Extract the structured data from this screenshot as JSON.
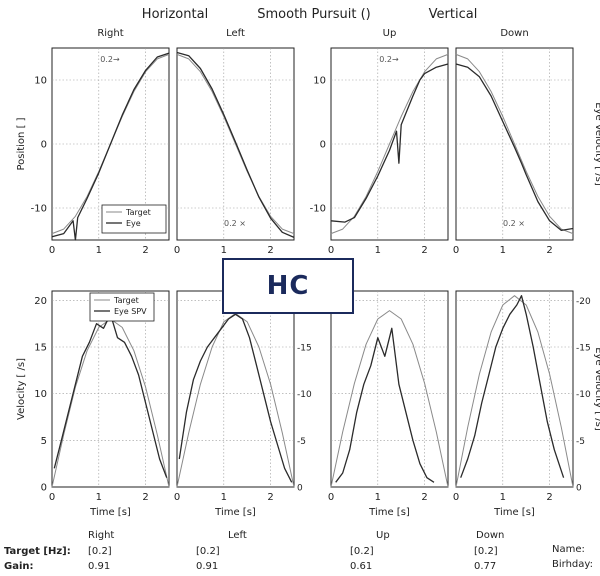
{
  "header": {
    "horizontal": "Horizontal",
    "smooth_pursuit": "Smooth Pursuit ()",
    "vertical": "Vertical"
  },
  "overlay_label": "HC",
  "colors": {
    "target": "#8a8a8a",
    "eye": "#2b2b2b",
    "grid": "#9a9a9a",
    "axis": "#222222",
    "overlay_border": "#1b2a5c",
    "overlay_text": "#1b2a5c"
  },
  "chart_data": [
    {
      "type": "line",
      "row": "position",
      "title": "Right",
      "ylabel": "Position [ ]",
      "xlabel": "",
      "xlim": [
        0,
        2.5
      ],
      "ylim": [
        -15,
        15
      ],
      "xticks": [
        "0",
        "1",
        "2"
      ],
      "yticks": [
        "10",
        "0",
        "-10"
      ],
      "grid": true,
      "annotation": "0.2→",
      "legend": {
        "entries": [
          "Target",
          "Eye"
        ],
        "position": "bottom-right"
      },
      "series": [
        {
          "name": "Target",
          "x": [
            0,
            0.25,
            0.5,
            0.75,
            1.0,
            1.25,
            1.5,
            1.75,
            2.0,
            2.25,
            2.5
          ],
          "y": [
            -14,
            -13.3,
            -11.3,
            -8.2,
            -4.3,
            0,
            4.3,
            8.2,
            11.3,
            13.3,
            14
          ]
        },
        {
          "name": "Eye",
          "x": [
            0,
            0.25,
            0.45,
            0.5,
            0.55,
            0.75,
            1.0,
            1.25,
            1.5,
            1.75,
            2.0,
            2.25,
            2.5
          ],
          "y": [
            -14.5,
            -14,
            -12,
            -15,
            -11.5,
            -8.5,
            -4.5,
            0,
            4.5,
            8.5,
            11.5,
            13.6,
            14.2
          ]
        }
      ]
    },
    {
      "type": "line",
      "row": "position",
      "title": "Left",
      "xlabel": "",
      "xlim": [
        0,
        2.5
      ],
      "ylim": [
        -15,
        15
      ],
      "xticks": [
        "0",
        "1",
        "2"
      ],
      "yticks": [],
      "grid": true,
      "annotation": "0.2 ×",
      "series": [
        {
          "name": "Target",
          "x": [
            0,
            0.25,
            0.5,
            0.75,
            1.0,
            1.25,
            1.5,
            1.75,
            2.0,
            2.25,
            2.5
          ],
          "y": [
            14,
            13.3,
            11.3,
            8.2,
            4.3,
            0,
            -4.3,
            -8.2,
            -11.3,
            -13.3,
            -14
          ]
        },
        {
          "name": "Eye",
          "x": [
            0,
            0.25,
            0.5,
            0.75,
            1.0,
            1.25,
            1.5,
            1.75,
            2.0,
            2.25,
            2.5
          ],
          "y": [
            14.3,
            13.8,
            11.8,
            8.6,
            4.6,
            0.3,
            -4.1,
            -8.3,
            -11.6,
            -13.8,
            -14.6
          ]
        }
      ]
    },
    {
      "type": "line",
      "row": "position",
      "title": "Up",
      "xlabel": "",
      "xlim": [
        0,
        2.5
      ],
      "ylim": [
        -15,
        15
      ],
      "xticks": [
        "0",
        "1",
        "2"
      ],
      "yticks": [
        "10",
        "0",
        "-10"
      ],
      "grid": true,
      "annotation": "0.2→",
      "series": [
        {
          "name": "Target",
          "x": [
            0,
            0.25,
            0.5,
            0.75,
            1.0,
            1.25,
            1.5,
            1.75,
            2.0,
            2.25,
            2.5
          ],
          "y": [
            -14,
            -13.3,
            -11.3,
            -8.2,
            -4.3,
            0,
            4.3,
            8.2,
            11.3,
            13.3,
            14
          ]
        },
        {
          "name": "Eye",
          "x": [
            0,
            0.3,
            0.5,
            0.75,
            1.0,
            1.25,
            1.4,
            1.45,
            1.5,
            1.75,
            1.9,
            2.0,
            2.25,
            2.5
          ],
          "y": [
            -12,
            -12.2,
            -11.5,
            -8.5,
            -5,
            -1,
            2,
            -3,
            3,
            7.5,
            10,
            11,
            12,
            12.5
          ]
        }
      ]
    },
    {
      "type": "line",
      "row": "position",
      "title": "Down",
      "xlabel": "",
      "xlim": [
        0,
        2.5
      ],
      "ylim": [
        -15,
        15
      ],
      "xticks": [
        "0",
        "1",
        "2"
      ],
      "yticks": [],
      "grid": true,
      "annotation": "0.2 ×",
      "right_axis_label": "Eye Velocity [ /s]",
      "series": [
        {
          "name": "Target",
          "x": [
            0,
            0.25,
            0.5,
            0.75,
            1.0,
            1.25,
            1.5,
            1.75,
            2.0,
            2.25,
            2.5
          ],
          "y": [
            14,
            13.3,
            11.3,
            8.2,
            4.3,
            0,
            -4.3,
            -8.2,
            -11.3,
            -13.3,
            -14
          ]
        },
        {
          "name": "Eye",
          "x": [
            0,
            0.25,
            0.5,
            0.75,
            1.0,
            1.25,
            1.4,
            1.5,
            1.75,
            2.0,
            2.25,
            2.5
          ],
          "y": [
            12.5,
            12,
            10.5,
            7.5,
            3.5,
            -0.5,
            -3,
            -4.8,
            -9,
            -12,
            -13.5,
            -13.2
          ]
        }
      ]
    },
    {
      "type": "line",
      "row": "velocity",
      "title": "",
      "ylabel": "Velocity [ /s]",
      "xlabel": "Time [s]",
      "xlim": [
        0,
        2.5
      ],
      "ylim": [
        0,
        21
      ],
      "xticks": [
        "0",
        "1",
        "2"
      ],
      "yticks": [
        "20",
        "15",
        "10",
        "5",
        "0"
      ],
      "grid": true,
      "legend": {
        "entries": [
          "Target",
          "Eye SPV"
        ],
        "position": "top"
      },
      "series": [
        {
          "name": "Target",
          "x": [
            0,
            0.25,
            0.5,
            0.75,
            1.0,
            1.25,
            1.5,
            1.75,
            2.0,
            2.25,
            2.5
          ],
          "y": [
            0,
            5.6,
            10.7,
            14.6,
            17.1,
            18,
            17.1,
            14.6,
            10.7,
            5.6,
            0
          ]
        },
        {
          "name": "Eye SPV",
          "x": [
            0.05,
            0.2,
            0.35,
            0.5,
            0.65,
            0.8,
            0.95,
            1.1,
            1.25,
            1.4,
            1.55,
            1.7,
            1.85,
            2.0,
            2.15,
            2.3,
            2.45
          ],
          "y": [
            2,
            5,
            8,
            11,
            14,
            15.5,
            17.5,
            17,
            18.5,
            16,
            15.5,
            14,
            12,
            9,
            6,
            3,
            1
          ]
        }
      ]
    },
    {
      "type": "line",
      "row": "velocity",
      "title": "",
      "xlabel": "Time [s]",
      "xlim": [
        0,
        2.5
      ],
      "ylim": [
        0,
        21
      ],
      "xticks": [
        "0",
        "1",
        "2"
      ],
      "yticks": [],
      "right_yticks": [
        "-15",
        "-10",
        "-5",
        "0"
      ],
      "grid": true,
      "series": [
        {
          "name": "Target",
          "x": [
            0,
            0.25,
            0.5,
            0.75,
            1.0,
            1.25,
            1.5,
            1.75,
            2.0,
            2.25,
            2.5
          ],
          "y": [
            0,
            5.8,
            11,
            15,
            17.7,
            18.6,
            17.7,
            15,
            11,
            5.8,
            0
          ]
        },
        {
          "name": "Eye SPV",
          "x": [
            0.05,
            0.2,
            0.35,
            0.5,
            0.65,
            0.8,
            0.95,
            1.1,
            1.25,
            1.4,
            1.55,
            1.7,
            1.85,
            2.0,
            2.15,
            2.3,
            2.45
          ],
          "y": [
            3,
            8,
            11.5,
            13.5,
            15,
            16,
            17,
            18,
            18.5,
            18,
            16,
            13,
            10,
            7,
            4.5,
            2,
            0.5
          ]
        }
      ]
    },
    {
      "type": "line",
      "row": "velocity",
      "title": "",
      "xlabel": "Time [s]",
      "xlim": [
        0,
        2.5
      ],
      "ylim": [
        0,
        21
      ],
      "xticks": [
        "0",
        "1",
        "2"
      ],
      "yticks": [],
      "grid": true,
      "series": [
        {
          "name": "Target",
          "x": [
            0,
            0.25,
            0.5,
            0.75,
            1.0,
            1.25,
            1.5,
            1.75,
            2.0,
            2.25,
            2.5
          ],
          "y": [
            0,
            5.9,
            11.1,
            15.3,
            18,
            18.9,
            18,
            15.3,
            11.1,
            5.9,
            0
          ]
        },
        {
          "name": "Eye SPV",
          "x": [
            0.1,
            0.25,
            0.4,
            0.55,
            0.7,
            0.85,
            1.0,
            1.15,
            1.3,
            1.45,
            1.6,
            1.75,
            1.9,
            2.05,
            2.2
          ],
          "y": [
            0.5,
            1.5,
            4,
            8,
            11,
            13,
            16,
            14,
            17,
            11,
            8,
            5,
            2.5,
            1,
            0.5
          ]
        }
      ]
    },
    {
      "type": "line",
      "row": "velocity",
      "title": "",
      "xlabel": "Time [s]",
      "xlim": [
        0,
        2.5
      ],
      "ylim": [
        0,
        21
      ],
      "xticks": [
        "0",
        "1",
        "2"
      ],
      "yticks": [],
      "right_yticks": [
        "-20",
        "-15",
        "-10",
        "-5",
        "0"
      ],
      "right_axis_label": "Eye Velocity [ /s]",
      "grid": true,
      "series": [
        {
          "name": "Target",
          "x": [
            0,
            0.25,
            0.5,
            0.75,
            1.0,
            1.25,
            1.5,
            1.75,
            2.0,
            2.25,
            2.5
          ],
          "y": [
            0,
            6.4,
            12.1,
            16.6,
            19.5,
            20.5,
            19.5,
            16.6,
            12.1,
            6.4,
            0
          ]
        },
        {
          "name": "Eye SPV",
          "x": [
            0.1,
            0.25,
            0.4,
            0.55,
            0.7,
            0.85,
            1.0,
            1.15,
            1.3,
            1.4,
            1.5,
            1.65,
            1.8,
            1.95,
            2.1,
            2.3
          ],
          "y": [
            1,
            3,
            5.5,
            9,
            12,
            15,
            17,
            18.5,
            19.5,
            20.5,
            18.5,
            15,
            11,
            7,
            4,
            1
          ]
        }
      ]
    }
  ],
  "footer": {
    "columns": [
      "Right",
      "Left",
      "Up",
      "Down"
    ],
    "target_label": "Target [Hz]:",
    "gain_label": "Gain:",
    "targets": [
      "[0.2]",
      "[0.2]",
      "[0.2]",
      "[0.2]"
    ],
    "gains": [
      "0.91",
      "0.91",
      "0.61",
      "0.77"
    ],
    "name_label": "Name:",
    "birthday_label": "Birhday:"
  }
}
